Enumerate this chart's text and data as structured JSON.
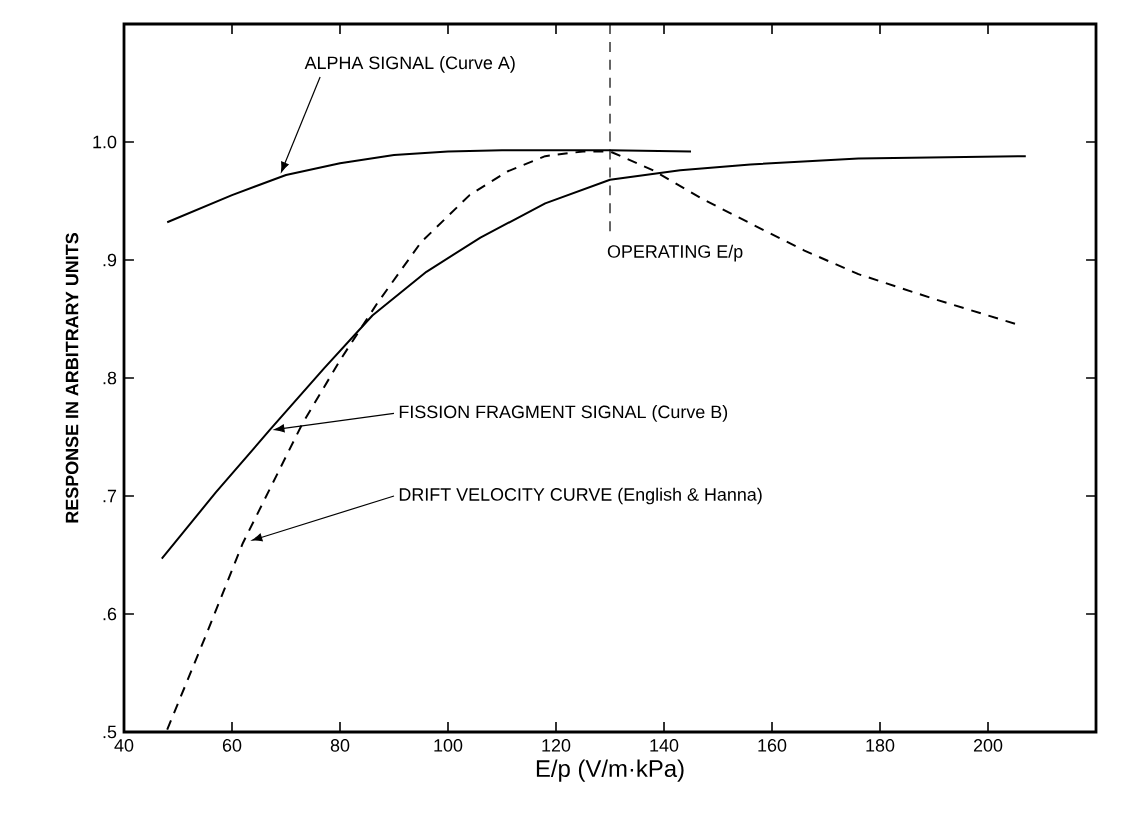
{
  "chart_data": {
    "type": "line",
    "xlabel": "E/p (V/m·kPa)",
    "ylabel": "RESPONSE IN ARBITRARY UNITS",
    "xlim": [
      40,
      220
    ],
    "ylim": [
      0.5,
      1.1
    ],
    "xticks": [
      40,
      60,
      80,
      100,
      120,
      140,
      160,
      180,
      200
    ],
    "yticks": [
      {
        "value": 0.5,
        "label": ".5"
      },
      {
        "value": 0.6,
        "label": ".6"
      },
      {
        "value": 0.7,
        "label": ".7"
      },
      {
        "value": 0.8,
        "label": ".8"
      },
      {
        "value": 0.9,
        "label": ".9"
      },
      {
        "value": 1.0,
        "label": "1.0"
      }
    ],
    "grid": false,
    "marker": "none",
    "annotations": [
      {
        "text": "ALPHA SIGNAL (Curve A)",
        "x": 69,
        "y": 0.973
      },
      {
        "text": "FISSION FRAGMENT SIGNAL (Curve B)",
        "x": 67.5,
        "y": 0.756
      },
      {
        "text": "DRIFT VELOCITY CURVE (English & Hanna)",
        "x": 63.4,
        "y": 0.662
      }
    ],
    "series": [
      {
        "color": "#000000",
        "line_style": "solid",
        "x": [
          48,
          60,
          70,
          80,
          90,
          100,
          110,
          120,
          130,
          145
        ],
        "values": [
          0.932,
          0.955,
          0.972,
          0.982,
          0.989,
          0.992,
          0.993,
          0.993,
          0.993,
          0.992
        ]
      },
      {
        "color": "#000000",
        "line_style": "solid",
        "x": [
          47,
          57,
          67,
          77,
          86,
          96,
          106,
          118,
          130,
          143,
          156,
          176,
          207
        ],
        "values": [
          0.647,
          0.703,
          0.756,
          0.808,
          0.853,
          0.89,
          0.919,
          0.948,
          0.968,
          0.976,
          0.981,
          0.986,
          0.988
        ]
      },
      {
        "color": "#000000",
        "line_style": "dashed",
        "x": [
          48,
          55,
          62,
          73,
          80,
          87,
          95,
          104,
          111,
          118,
          125,
          130,
          138,
          147,
          156,
          166,
          176,
          190,
          205
        ],
        "values": [
          0.502,
          0.58,
          0.66,
          0.761,
          0.815,
          0.864,
          0.915,
          0.955,
          0.975,
          0.988,
          0.992,
          0.992,
          0.976,
          0.952,
          0.931,
          0.908,
          0.888,
          0.867,
          0.846
        ]
      }
    ],
    "ref_lines": [
      {
        "axis": "x",
        "value": 130,
        "label": "OPERATING E/p",
        "line_style": "dashed",
        "color": "#000000"
      }
    ]
  }
}
